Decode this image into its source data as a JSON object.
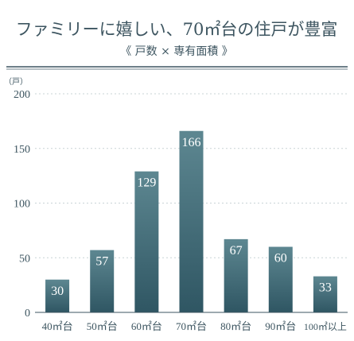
{
  "header": {
    "title": "ファミリーに嬉しい、70㎡台の住戸が豊富",
    "subtitle": "《 戸数 × 専有面積 》"
  },
  "colors": {
    "bar_top": "#5d8791",
    "bar_bottom": "#2f5663",
    "rule": "#3d5560",
    "grid": "#c9d3d6",
    "text": "#3d5560"
  },
  "chart_data": {
    "type": "bar",
    "title": "ファミリーに嬉しい、70㎡台の住戸が豊富",
    "subtitle": "《 戸数 × 専有面積 》",
    "unit": "（戸）",
    "categories": [
      "40㎡台",
      "50㎡台",
      "60㎡台",
      "70㎡台",
      "80㎡台",
      "90㎡台",
      "100㎡以上"
    ],
    "values": [
      30,
      57,
      129,
      166,
      67,
      60,
      33
    ],
    "ylim": [
      0,
      200
    ],
    "yticks": [
      0,
      50,
      100,
      150,
      200
    ],
    "grid": true,
    "data_labels": true
  }
}
